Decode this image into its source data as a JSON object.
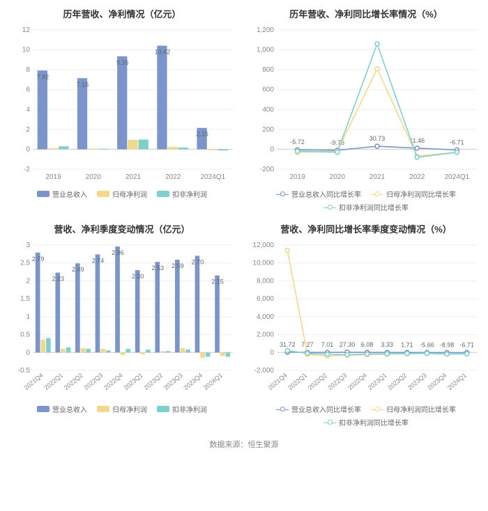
{
  "footer": "数据来源：恒生聚源",
  "colors": {
    "revenue": "#7a94cc",
    "netprofit": "#f4d88a",
    "deducted": "#7ed0cf",
    "grid": "#eeeeee",
    "axis": "#cccccc",
    "text": "#888888"
  },
  "panels": {
    "top_left": {
      "title": "历年营收、净利情况（亿元）",
      "type": "bar",
      "categories": [
        "2019",
        "2020",
        "2021",
        "2022",
        "2024Q1"
      ],
      "y": {
        "min": -2,
        "max": 12,
        "step": 2
      },
      "series": [
        {
          "name": "营业总收入",
          "swatch": "rect",
          "color": "#7a94cc",
          "values": [
            7.92,
            7.15,
            9.35,
            10.42,
            2.15
          ],
          "labels": [
            "7.92",
            "7.15",
            "9.35",
            "10.42",
            "2.15"
          ],
          "show_labels": true
        },
        {
          "name": "归母净利润",
          "swatch": "rect",
          "color": "#f4d88a",
          "values": [
            0.1,
            0.08,
            0.95,
            0.25,
            -0.1
          ],
          "show_labels": false
        },
        {
          "name": "扣非净利润",
          "swatch": "rect",
          "color": "#7ed0cf",
          "values": [
            0.3,
            0.06,
            0.98,
            0.18,
            -0.12
          ],
          "show_labels": false
        }
      ]
    },
    "top_right": {
      "title": "历年营收、净利同比增长率情况（%）",
      "type": "line",
      "categories": [
        "2019",
        "2020",
        "2021",
        "2022",
        "2024Q1"
      ],
      "y": {
        "min": -200,
        "max": 1200,
        "step": 200
      },
      "series": [
        {
          "name": "营业总收入同比增长率",
          "swatch": "line",
          "color": "#7a94cc",
          "values": [
            -5.72,
            -9.76,
            30.73,
            11.46,
            -6.71
          ],
          "labels": [
            "-5.72",
            "-9.76",
            "30.73",
            "11.46",
            "-6.71"
          ],
          "show_labels": true
        },
        {
          "name": "归母净利润同比增长率",
          "swatch": "line",
          "color": "#f4d88a",
          "values": [
            -30,
            -20,
            810,
            -70,
            -30
          ],
          "show_labels": false
        },
        {
          "name": "扣非净利润同比增长率",
          "swatch": "line",
          "color": "#7ed0cf",
          "values": [
            -20,
            -30,
            1060,
            -80,
            -30
          ],
          "show_labels": false
        }
      ]
    },
    "bottom_left": {
      "title": "营收、净利季度变动情况（亿元）",
      "type": "bar",
      "rotate_x": true,
      "categories": [
        "2021Q4",
        "2022Q1",
        "2022Q2",
        "2022Q3",
        "2022Q4",
        "2023Q1",
        "2023Q2",
        "2023Q3",
        "2023Q4",
        "2024Q1"
      ],
      "y": {
        "min": -0.5,
        "max": 3,
        "step": 0.5
      },
      "series": [
        {
          "name": "营业总收入",
          "swatch": "rect",
          "color": "#7a94cc",
          "values": [
            2.79,
            2.23,
            2.49,
            2.74,
            2.96,
            2.3,
            2.53,
            2.59,
            2.7,
            2.15
          ],
          "labels": [
            "2.79",
            "2.23",
            "2.49",
            "2.74",
            "2.96",
            "2.30",
            "2.53",
            "2.59",
            "2.70",
            "2.15"
          ],
          "show_labels": true
        },
        {
          "name": "归母净利润",
          "swatch": "rect",
          "color": "#f4d88a",
          "values": [
            0.36,
            0.1,
            0.12,
            0.1,
            -0.07,
            -0.05,
            0.04,
            0.12,
            -0.15,
            -0.1
          ],
          "show_labels": false
        },
        {
          "name": "扣非净利润",
          "swatch": "rect",
          "color": "#7ed0cf",
          "values": [
            0.4,
            0.14,
            0.1,
            0.06,
            0.1,
            0.08,
            0.04,
            0.08,
            -0.12,
            -0.12
          ],
          "show_labels": false
        }
      ]
    },
    "bottom_right": {
      "title": "营收、净利同比增长率季度变动情况（%）",
      "type": "line",
      "rotate_x": true,
      "categories": [
        "2021Q4",
        "2022Q1",
        "2022Q2",
        "2022Q3",
        "2022Q4",
        "2023Q1",
        "2023Q2",
        "2023Q3",
        "2023Q4",
        "2024Q1"
      ],
      "y": {
        "min": -2000,
        "max": 12000,
        "step": 2000
      },
      "series": [
        {
          "name": "营业总收入同比增长率",
          "swatch": "line",
          "color": "#7a94cc",
          "values": [
            31.72,
            7.27,
            7.01,
            27.3,
            6.08,
            3.33,
            1.71,
            -5.66,
            -8.98,
            -6.71
          ],
          "labels": [
            "31.72",
            "7.27",
            "7.01",
            "27.30",
            "6.08",
            "3.33",
            "1.71",
            "-5.66",
            "-8.98",
            "-6.71"
          ],
          "show_labels": true
        },
        {
          "name": "归母净利润同比增长率",
          "swatch": "line",
          "color": "#f4d88a",
          "values": [
            11400,
            -200,
            -400,
            -300,
            -250,
            -200,
            -150,
            -100,
            -200,
            -150
          ],
          "show_labels": false
        },
        {
          "name": "扣非净利润同比增长率",
          "swatch": "line",
          "color": "#7ed0cf",
          "values": [
            200,
            -100,
            -200,
            -250,
            -180,
            -150,
            -120,
            -100,
            -180,
            -150
          ],
          "show_labels": false
        }
      ]
    }
  }
}
